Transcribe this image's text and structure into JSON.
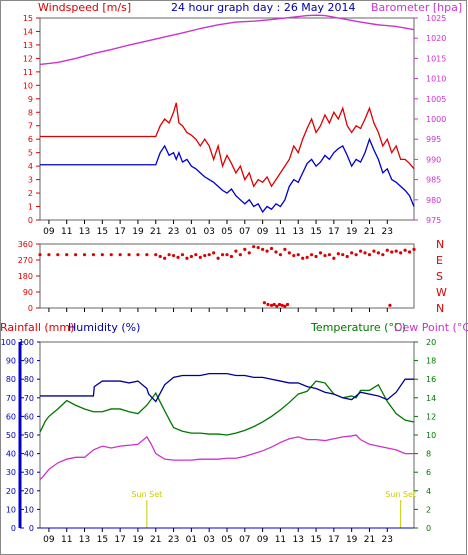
{
  "header": {
    "left_label": "Windspeed [m/s]",
    "center_title": "24 hour graph day : 26 May 2014",
    "right_label": "Barometer [hpa]"
  },
  "bottom_header": {
    "rain_label": "Rainfall (mm)",
    "humidity_label": "Humidity (%)",
    "temperature_label": "Temperature (°C)",
    "dewpoint_label": "Dew Point (°C)"
  },
  "sunset_labels": [
    "Sun Set",
    "Sun Set"
  ],
  "colors": {
    "wind_gust": "#dd0000",
    "wind_avg": "#0000cc",
    "barometer": "#cc33cc",
    "direction": "#dd0000",
    "rain": "#0000cc",
    "humidity": "#000099",
    "temperature": "#007700",
    "dewpoint": "#cc33cc",
    "sunset": "#cccc00",
    "grid": "#cccccc",
    "left_axis": "#dd0000",
    "blue_axis": "#0000cc",
    "green_axis": "#007700",
    "right_axis": "#cc33cc"
  },
  "chart_data": [
    {
      "type": "line",
      "name": "wind-and-barometer",
      "x_labels": [
        "09",
        "11",
        "13",
        "15",
        "17",
        "19",
        "21",
        "23",
        "01",
        "03",
        "05",
        "07",
        "09",
        "11",
        "13",
        "15",
        "17",
        "19",
        "21",
        "23"
      ],
      "ylim_wind": [
        0,
        15
      ],
      "wind_ticks": [
        0,
        1,
        2,
        3,
        4,
        5,
        6,
        7,
        8,
        9,
        10,
        11,
        12,
        13,
        14,
        15
      ],
      "ylim_baro": [
        975,
        1025
      ],
      "baro_ticks": [
        975,
        980,
        985,
        990,
        995,
        1000,
        1005,
        1010,
        1015,
        1020,
        1025
      ],
      "grid": true,
      "series": [
        {
          "name": "gust",
          "x": [
            0,
            13,
            13.5,
            14,
            14.5,
            15,
            15.3,
            15.6,
            16,
            16.5,
            17,
            17.5,
            18,
            18.5,
            19,
            19.5,
            20,
            20.5,
            21,
            21.5,
            22,
            22.5,
            23,
            23.5,
            24,
            24.5,
            25,
            25.5,
            26,
            26.5,
            27,
            27.5,
            28,
            28.5,
            29,
            29.5,
            30,
            30.5,
            31,
            31.5,
            32,
            32.5,
            33,
            33.5,
            34,
            34.5,
            35,
            35.5,
            36,
            36.5,
            37,
            37.5,
            38,
            38.5,
            39,
            39.5,
            40,
            40.5,
            41,
            41.5,
            42
          ],
          "values": [
            6.2,
            6.2,
            7.0,
            7.5,
            7.2,
            8.0,
            8.7,
            7.2,
            7.0,
            6.5,
            6.3,
            6.0,
            5.5,
            6.0,
            5.5,
            4.5,
            5.5,
            4.0,
            4.8,
            4.2,
            3.5,
            4.0,
            3.0,
            3.5,
            2.5,
            3.0,
            2.8,
            3.2,
            2.5,
            3.0,
            3.5,
            4.0,
            4.5,
            5.5,
            5.0,
            6.0,
            6.8,
            7.5,
            6.5,
            7.0,
            7.8,
            7.2,
            8.0,
            7.5,
            8.3,
            7.0,
            6.5,
            7.0,
            6.8,
            7.5,
            8.3,
            7.2,
            6.5,
            5.5,
            6.0,
            5.0,
            5.5,
            4.5,
            4.5,
            4.2,
            3.8
          ]
        },
        {
          "name": "average",
          "x": [
            0,
            13,
            13.5,
            14,
            14.5,
            15,
            15.3,
            15.6,
            16,
            16.5,
            17,
            17.5,
            18,
            18.5,
            19,
            19.5,
            20,
            20.5,
            21,
            21.5,
            22,
            22.5,
            23,
            23.5,
            24,
            24.5,
            25,
            25.5,
            26,
            26.5,
            27,
            27.5,
            28,
            28.5,
            29,
            29.5,
            30,
            30.5,
            31,
            31.5,
            32,
            32.5,
            33,
            33.5,
            34,
            34.5,
            35,
            35.5,
            36,
            36.5,
            37,
            37.5,
            38,
            38.5,
            39,
            39.5,
            40,
            40.5,
            41,
            41.5,
            42
          ],
          "values": [
            4.1,
            4.1,
            5.0,
            5.5,
            4.8,
            5.0,
            4.5,
            5.0,
            4.3,
            4.5,
            4.0,
            3.8,
            3.5,
            3.2,
            3.0,
            2.8,
            2.5,
            2.2,
            2.0,
            2.3,
            1.8,
            1.5,
            1.2,
            1.5,
            1.0,
            1.2,
            0.6,
            1.0,
            0.8,
            1.2,
            1.0,
            1.5,
            2.5,
            3.0,
            2.8,
            3.5,
            4.2,
            4.5,
            4.0,
            4.3,
            4.8,
            4.5,
            5.0,
            5.3,
            5.5,
            4.8,
            4.0,
            4.5,
            4.3,
            5.0,
            6.0,
            5.2,
            4.5,
            3.5,
            3.8,
            3.0,
            2.8,
            2.5,
            2.2,
            1.8,
            1.0
          ]
        },
        {
          "name": "barometer",
          "x": [
            0,
            2,
            4,
            6,
            8,
            10,
            12,
            14,
            16,
            18,
            20,
            22,
            24,
            26,
            28,
            30,
            31,
            32,
            34,
            36,
            38,
            40,
            42
          ],
          "values": [
            1013.5,
            1014.0,
            1015.0,
            1016.2,
            1017.2,
            1018.3,
            1019.3,
            1020.3,
            1021.3,
            1022.4,
            1023.3,
            1024.0,
            1024.2,
            1024.6,
            1025.1,
            1025.6,
            1025.7,
            1025.6,
            1024.8,
            1024.0,
            1023.3,
            1022.9,
            1022.1
          ]
        }
      ]
    },
    {
      "type": "scatter",
      "name": "wind-direction",
      "x_labels": [
        "09",
        "11",
        "13",
        "15",
        "17",
        "19",
        "21",
        "23",
        "01",
        "03",
        "05",
        "07",
        "09",
        "11",
        "13",
        "15",
        "17",
        "19",
        "21",
        "23"
      ],
      "y_ticks": [
        0,
        90,
        180,
        270,
        360
      ],
      "ylim": [
        0,
        360
      ],
      "compass_labels": [
        "N",
        "W",
        "S",
        "E",
        "N"
      ],
      "series": [
        {
          "name": "direction",
          "x": [
            0,
            1,
            2,
            3,
            4,
            5,
            6,
            7,
            8,
            9,
            10,
            11,
            12,
            13,
            13.5,
            14,
            14.5,
            15,
            15.5,
            16,
            16.5,
            17,
            17.5,
            18,
            18.5,
            19,
            19.5,
            20,
            20.5,
            21,
            21.5,
            22,
            22.5,
            23,
            23.5,
            24,
            24.5,
            25,
            25.5,
            26,
            26.5,
            27,
            27.5,
            28,
            28.5,
            29,
            29.5,
            30,
            30.5,
            31,
            31.5,
            32,
            32.5,
            33,
            33.5,
            34,
            34.5,
            35,
            35.5,
            36,
            36.5,
            37,
            37.5,
            38,
            38.5,
            39,
            39.5,
            40,
            40.5,
            41,
            41.5,
            42,
            25.2,
            25.6,
            26.0,
            26.3,
            26.6,
            26.9,
            27.2,
            27.5,
            27.8,
            39.3
          ],
          "values": [
            300,
            300,
            300,
            300,
            300,
            300,
            300,
            300,
            300,
            300,
            300,
            300,
            300,
            300,
            290,
            280,
            300,
            295,
            285,
            300,
            280,
            290,
            300,
            285,
            295,
            300,
            310,
            280,
            300,
            300,
            290,
            320,
            300,
            330,
            310,
            345,
            340,
            330,
            320,
            335,
            315,
            300,
            330,
            310,
            295,
            300,
            280,
            285,
            300,
            290,
            310,
            295,
            300,
            280,
            305,
            300,
            290,
            310,
            300,
            320,
            310,
            300,
            320,
            310,
            300,
            325,
            315,
            320,
            310,
            325,
            315,
            330,
            30,
            20,
            15,
            20,
            10,
            20,
            15,
            10,
            20,
            15
          ]
        }
      ]
    },
    {
      "type": "line",
      "name": "rain-humidity-temperature",
      "x_labels": [
        "09",
        "11",
        "13",
        "15",
        "17",
        "19",
        "21",
        "23",
        "01",
        "03",
        "05",
        "07",
        "09",
        "11",
        "13",
        "15",
        "17",
        "19",
        "21",
        "23"
      ],
      "ylim_rain": [
        0,
        100
      ],
      "ylim_humidity": [
        0,
        100
      ],
      "ylim_temp": [
        0,
        20
      ],
      "rain_ticks": [
        0,
        10,
        20,
        30,
        40,
        50,
        60,
        70,
        80,
        90,
        100
      ],
      "humidity_ticks": [
        0,
        10,
        20,
        30,
        40,
        50,
        60,
        70,
        80,
        90,
        100
      ],
      "temp_ticks": [
        0,
        2,
        4,
        6,
        8,
        10,
        12,
        14,
        16,
        18,
        20
      ],
      "grid": true,
      "series": [
        {
          "name": "rainfall",
          "x": [
            0,
            42
          ],
          "values": [
            0,
            0
          ]
        },
        {
          "name": "humidity",
          "x": [
            0,
            1,
            2,
            3,
            4,
            5,
            6,
            6.1,
            7,
            8,
            9,
            10,
            11,
            12,
            12.2,
            13,
            14,
            15,
            16,
            17,
            18,
            19,
            20,
            21,
            22,
            23,
            24,
            25,
            26,
            27,
            28,
            29,
            30,
            31,
            32,
            33,
            34,
            35,
            36,
            37,
            38,
            39,
            40,
            41,
            42
          ],
          "values": [
            71,
            71,
            71,
            71,
            71,
            71,
            71,
            76,
            79,
            79,
            79,
            78,
            79,
            75,
            72,
            68,
            77,
            81,
            82,
            82,
            82,
            83,
            83,
            83,
            82,
            82,
            81,
            81,
            80,
            79,
            78,
            78,
            76,
            75,
            73,
            72,
            70,
            69,
            73,
            72,
            71,
            69,
            73,
            80,
            80
          ]
        },
        {
          "name": "temperature",
          "x": [
            0,
            0.6,
            1,
            2,
            3,
            4,
            5,
            6,
            7,
            8,
            9,
            10,
            11,
            12,
            13,
            14,
            15,
            16,
            17,
            18,
            19,
            20,
            21,
            22,
            23,
            24,
            25,
            26,
            27,
            28,
            29,
            30,
            31,
            32,
            33,
            34,
            35,
            35.5,
            36,
            37,
            38,
            39,
            40,
            41,
            42
          ],
          "values": [
            10.3,
            11.5,
            12.0,
            12.8,
            13.7,
            13.2,
            12.8,
            12.5,
            12.5,
            12.8,
            12.8,
            12.5,
            12.3,
            13.2,
            14.5,
            12.6,
            10.8,
            10.4,
            10.2,
            10.2,
            10.1,
            10.1,
            10.0,
            10.2,
            10.5,
            10.9,
            11.4,
            12.0,
            12.7,
            13.5,
            14.4,
            14.7,
            15.8,
            15.6,
            14.4,
            14.0,
            14.2,
            14.0,
            14.8,
            14.8,
            15.4,
            13.6,
            12.3,
            11.6,
            11.4
          ]
        },
        {
          "name": "dewpoint",
          "x": [
            0,
            0.4,
            1,
            2,
            3,
            4,
            5,
            6,
            7,
            8,
            9,
            10,
            11,
            11.5,
            12,
            12.5,
            13,
            14,
            15,
            16,
            17,
            18,
            19,
            20,
            21,
            22,
            23,
            24,
            25,
            26,
            27,
            28,
            29,
            30,
            31,
            32,
            33,
            34,
            35,
            35.5,
            36,
            37,
            38,
            39,
            40,
            41,
            42
          ],
          "values": [
            5.2,
            5.6,
            6.3,
            7.0,
            7.4,
            7.6,
            7.6,
            8.4,
            8.8,
            8.6,
            8.8,
            8.9,
            9.0,
            9.4,
            9.8,
            9.0,
            8.0,
            7.4,
            7.3,
            7.3,
            7.3,
            7.4,
            7.4,
            7.4,
            7.5,
            7.5,
            7.7,
            8.0,
            8.3,
            8.7,
            9.2,
            9.6,
            9.8,
            9.5,
            9.5,
            9.4,
            9.6,
            9.8,
            9.9,
            10.0,
            9.5,
            9.0,
            8.8,
            8.6,
            8.4,
            8.0,
            8.0
          ]
        }
      ],
      "annotations": [
        {
          "text": "Sun Set",
          "x": 12
        },
        {
          "text": "Sun Set",
          "x": 40.5
        }
      ]
    }
  ]
}
